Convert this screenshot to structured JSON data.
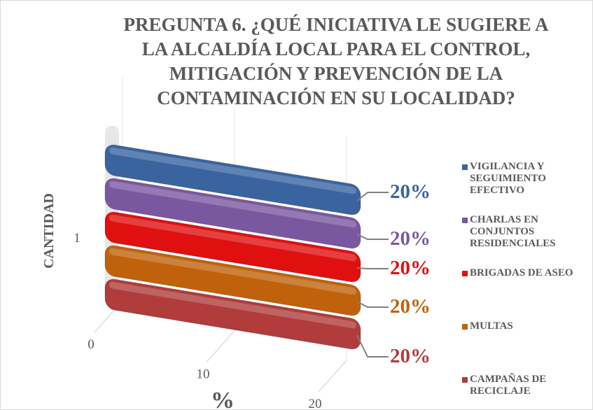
{
  "chart_data": {
    "type": "bar3d",
    "title": "PREGUNTA 6.  ¿QUÉ INICIATIVA LE SUGIERE A LA ALCALDÍA LOCAL PARA EL CONTROL, MITIGACIÓN Y PREVENCIÓN DE LA CONTAMINACIÓN EN SU LOCALIDAD?",
    "y_label": "CANTIDAD",
    "x_label": "%",
    "categories": [
      "1"
    ],
    "xlim": [
      0,
      20
    ],
    "xticks": [
      0,
      10,
      20
    ],
    "series": [
      {
        "name": "VIGILANCIA Y SEGUIMIENTO EFECTIVO",
        "color": "#3a64a0",
        "values": [
          20
        ],
        "value_labels": [
          "20%"
        ]
      },
      {
        "name": "CHARLAS EN CONJUNTOS RESIDENCIALES",
        "color": "#7a58a0",
        "values": [
          20
        ],
        "value_labels": [
          "20%"
        ]
      },
      {
        "name": "BRIGADAS DE ASEO",
        "color": "#e01010",
        "values": [
          20
        ],
        "value_labels": [
          "20%"
        ]
      },
      {
        "name": "MULTAS",
        "color": "#c0620c",
        "values": [
          20
        ],
        "value_labels": [
          "20%"
        ]
      },
      {
        "name": "CAMPAÑAS DE RECICLAJE",
        "color": "#b03c3c",
        "values": [
          20
        ],
        "value_labels": [
          "20%"
        ]
      }
    ]
  }
}
